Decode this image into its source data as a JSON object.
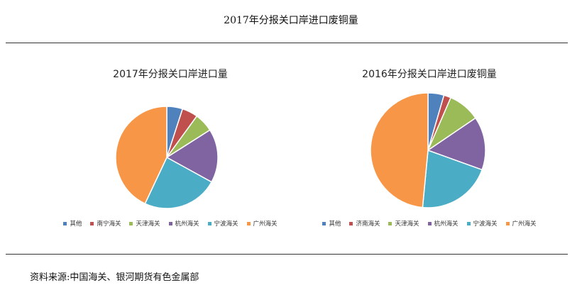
{
  "page": {
    "title": "2017年分报关口岸进口废铜量",
    "source": "资料来源:中国海关、银河期货有色金属部"
  },
  "colors": {
    "blue": "#4f81bd",
    "red": "#c0504d",
    "green": "#9bbb59",
    "purple": "#8064a2",
    "teal": "#4bacc6",
    "orange": "#f79646"
  },
  "chart_data": [
    {
      "type": "pie",
      "title": "2017年分报关口岸进口量",
      "legend_position": "bottom",
      "slices": [
        {
          "label": "其他",
          "value": 5,
          "color": "#4f81bd"
        },
        {
          "label": "南宁海关",
          "value": 5,
          "color": "#c0504d"
        },
        {
          "label": "天津海关",
          "value": 6,
          "color": "#9bbb59"
        },
        {
          "label": "杭州海关",
          "value": 17,
          "color": "#8064a2"
        },
        {
          "label": "宁波海关",
          "value": 24,
          "color": "#4bacc6"
        },
        {
          "label": "广州海关",
          "value": 43,
          "color": "#f79646"
        }
      ]
    },
    {
      "type": "pie",
      "title": "2016年分报关口岸进口废铜量",
      "legend_position": "bottom",
      "slices": [
        {
          "label": "其他",
          "value": 4.5,
          "color": "#4f81bd"
        },
        {
          "label": "济南海关",
          "value": 2,
          "color": "#c0504d"
        },
        {
          "label": "天津海关",
          "value": 9,
          "color": "#9bbb59"
        },
        {
          "label": "杭州海关",
          "value": 15,
          "color": "#8064a2"
        },
        {
          "label": "宁波海关",
          "value": 21,
          "color": "#4bacc6"
        },
        {
          "label": "广州海关",
          "value": 48.5,
          "color": "#f79646"
        }
      ]
    }
  ]
}
